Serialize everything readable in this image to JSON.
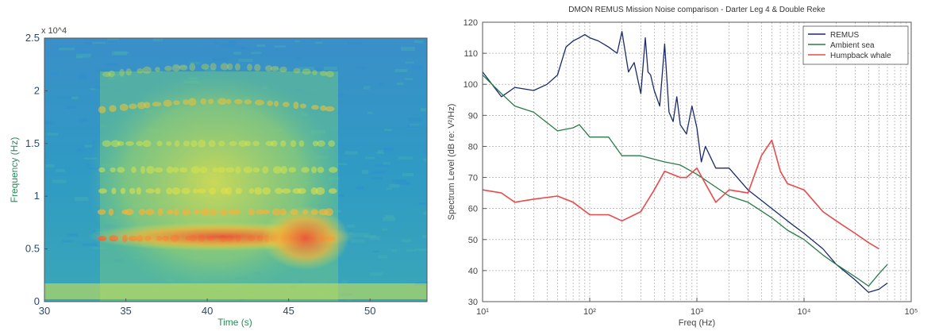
{
  "chart_data": [
    {
      "type": "heatmap",
      "xlabel": "Time (s)",
      "ylabel": "Frequency (Hz)",
      "y_multiplier": "x 10^4",
      "xlim": [
        30,
        53.5
      ],
      "ylim": [
        0,
        2.5
      ],
      "x_ticks": [
        "30",
        "35",
        "40",
        "45",
        "50"
      ],
      "y_ticks": [
        "0",
        "0.5",
        "1",
        "1.5",
        "2",
        "2.5"
      ],
      "colormap": [
        "#2b7bc8",
        "#38a8c8",
        "#6cc58a",
        "#d6e34a",
        "#f2b33a",
        "#e8563a"
      ],
      "call_interval": [
        33.5,
        48
      ],
      "call_band_center": 0.6
    },
    {
      "type": "line",
      "title": "DMON REMUS Mission Noise comparison - Darter Leg 4 & Double Reke",
      "xlabel": "Freq (Hz)",
      "ylabel": "Spectrum Level (dB re: V²/Hz)",
      "xscale": "log",
      "xlim": [
        10,
        100000
      ],
      "ylim": [
        30,
        120
      ],
      "x_ticks": [
        "10¹",
        "10²",
        "10³",
        "10⁴",
        "10⁵"
      ],
      "y_ticks": [
        "30",
        "40",
        "50",
        "60",
        "70",
        "80",
        "90",
        "100",
        "110",
        "120"
      ],
      "grid": true,
      "legend": "top-right",
      "series": [
        {
          "name": "REMUS",
          "color": "#1c2a6b",
          "x": [
            10,
            15,
            20,
            30,
            40,
            50,
            60,
            70,
            80,
            90,
            100,
            120,
            150,
            180,
            200,
            230,
            260,
            300,
            330,
            350,
            370,
            400,
            450,
            500,
            550,
            600,
            650,
            700,
            800,
            900,
            1000,
            1100,
            1200,
            1500,
            2000,
            3000,
            5000,
            7000,
            10000,
            15000,
            20000,
            30000,
            40000,
            50000,
            60000
          ],
          "y": [
            104,
            96,
            99,
            98,
            100,
            103,
            112,
            114,
            115,
            116,
            115,
            114,
            112,
            110,
            117,
            104,
            107,
            97,
            115,
            104,
            103,
            98,
            93,
            113,
            91,
            88,
            96,
            87,
            84,
            93,
            86,
            75,
            80,
            73,
            73,
            66,
            60,
            56,
            52,
            47,
            42,
            37,
            33,
            34,
            36
          ]
        },
        {
          "name": "Ambient sea",
          "color": "#2a7a48",
          "x": [
            10,
            15,
            20,
            30,
            50,
            70,
            80,
            100,
            150,
            200,
            300,
            500,
            700,
            1000,
            2000,
            3000,
            5000,
            7000,
            10000,
            15000,
            20000,
            30000,
            40000,
            50000,
            60000
          ],
          "y": [
            103,
            97,
            93,
            91,
            85,
            86,
            87,
            83,
            83,
            77,
            77,
            75,
            74,
            71,
            64,
            62,
            57,
            53,
            50,
            45,
            42,
            38,
            35,
            39,
            42
          ]
        },
        {
          "name": "Humpback whale",
          "color": "#e84a4a",
          "x": [
            10,
            15,
            20,
            30,
            50,
            70,
            100,
            150,
            200,
            300,
            400,
            500,
            700,
            800,
            1000,
            1200,
            1500,
            2000,
            3000,
            4000,
            5000,
            6000,
            7000,
            10000,
            15000,
            20000,
            30000,
            40000,
            50000
          ],
          "y": [
            66,
            65,
            62,
            63,
            64,
            62,
            58,
            58,
            56,
            59,
            66,
            72,
            70,
            70,
            73,
            68,
            62,
            66,
            65,
            77,
            82,
            72,
            68,
            66,
            59,
            56,
            52,
            49,
            47
          ]
        }
      ]
    }
  ]
}
